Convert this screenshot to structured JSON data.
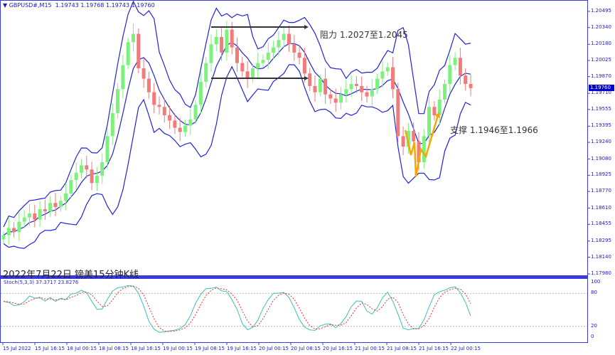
{
  "header": {
    "symbol": "GBPUSD#,M15",
    "ohlc": "1.19743 1.19768 1.19743 1.19760"
  },
  "annotations": {
    "resistance": "阻力 1.2027至1.2045",
    "support": "支撑 1.1946至1.1966",
    "caption": "2022年7月22日 镑美15分钟K线"
  },
  "colors": {
    "bull": "#7ef07e",
    "bear": "#f27a7a",
    "bands": "#2222dd",
    "stoch_main": "#3cc0b8",
    "stoch_signal": "#e83030",
    "support_mark": "#f5a800",
    "arrow": "#333333"
  },
  "chart_data": [
    {
      "type": "candlestick",
      "indicator": "Bollinger Bands",
      "price_axis": {
        "ticks": [
          "1.20495",
          "1.20340",
          "1.20180",
          "1.20025",
          "1.19870",
          "1.19710",
          "1.19555",
          "1.19395",
          "1.19240",
          "1.19080",
          "1.18925",
          "1.18770",
          "1.18610",
          "1.18455",
          "1.18295",
          "1.18140",
          "1.17980"
        ],
        "range": [
          1.1798,
          1.20495
        ],
        "current": "1.19760"
      },
      "closes": [
        1.1835,
        1.1842,
        1.1838,
        1.1848,
        1.1852,
        1.1856,
        1.185,
        1.186,
        1.1858,
        1.1866,
        1.1862,
        1.1868,
        1.1875,
        1.1888,
        1.1895,
        1.1902,
        1.1898,
        1.1885,
        1.1892,
        1.1905,
        1.193,
        1.1952,
        1.1975,
        1.1998,
        1.202,
        1.2028,
        1.1995,
        1.1985,
        1.1972,
        1.196,
        1.1958,
        1.195,
        1.1945,
        1.1938,
        1.1934,
        1.194,
        1.1946,
        1.196,
        1.1982,
        1.2,
        1.2018,
        1.2025,
        1.201,
        1.2032,
        1.2015,
        1.2,
        1.1992,
        1.1985,
        1.1995,
        1.2,
        1.2003,
        1.201,
        1.2015,
        1.2022,
        1.2028,
        1.2018,
        1.201,
        1.2005,
        1.199,
        1.1978,
        1.1972,
        1.1985,
        1.197,
        1.1966,
        1.1962,
        1.197,
        1.1975,
        1.198,
        1.1978,
        1.1972,
        1.1968,
        1.1975,
        1.1985,
        1.1992,
        1.1996,
        1.1975,
        1.193,
        1.192,
        1.1935,
        1.1925,
        1.1905,
        1.193,
        1.1958,
        1.195,
        1.1965,
        1.198,
        1.1998,
        1.2005,
        1.1988,
        1.198,
        1.1976
      ],
      "resistance_range": [
        1.2027,
        1.2045
      ],
      "support_range": [
        1.1946,
        1.1966
      ]
    },
    {
      "type": "line",
      "title": "Stoch(5,3,3) 37.3717 23.8276",
      "ylim": [
        0,
        100
      ],
      "y_ticks": [
        "100",
        "80",
        "20",
        "0"
      ],
      "levels": [
        20,
        80
      ]
    }
  ],
  "x_axis": [
    "15 Jul 2022",
    "15 Jul 16:15",
    "18 Jul 00:15",
    "18 Jul 08:15",
    "18 Jul 16:15",
    "19 Jul 00:15",
    "19 Jul 08:15",
    "19 Jul 16:15",
    "20 Jul 00:15",
    "20 Jul 08:15",
    "20 Jul 16:15",
    "21 Jul 00:15",
    "21 Jul 08:15",
    "21 Jul 16:15",
    "22 Jul 00:15"
  ]
}
